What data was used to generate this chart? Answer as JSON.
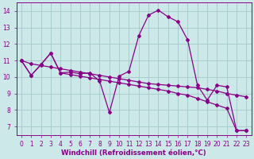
{
  "xlabel": "Windchill (Refroidissement éolien,°C)",
  "bg_color": "#cde8e8",
  "grid_color": "#a8cccc",
  "line_color": "#880088",
  "xlim": [
    -0.5,
    23.5
  ],
  "ylim": [
    6.5,
    14.5
  ],
  "xticks": [
    0,
    1,
    2,
    3,
    4,
    5,
    6,
    7,
    8,
    9,
    10,
    11,
    12,
    13,
    14,
    15,
    16,
    17,
    18,
    19,
    20,
    21,
    22,
    23
  ],
  "yticks": [
    7,
    8,
    9,
    10,
    11,
    12,
    13,
    14
  ],
  "curve1_x": [
    0,
    1,
    2,
    3,
    4,
    5,
    6,
    7,
    8,
    9,
    10,
    11,
    12,
    13,
    14,
    15,
    16,
    17,
    18,
    19,
    20,
    21,
    22,
    23
  ],
  "curve1_y": [
    11.0,
    10.1,
    10.75,
    11.45,
    10.25,
    10.3,
    10.2,
    10.25,
    9.75,
    7.85,
    10.05,
    10.35,
    12.5,
    13.75,
    14.05,
    13.65,
    13.35,
    12.25,
    9.5,
    8.6,
    9.5,
    9.4,
    6.75,
    6.75
  ],
  "curve2_x": [
    0,
    1,
    2,
    3,
    4,
    5,
    6,
    7,
    8,
    9,
    10,
    11,
    12,
    13,
    14,
    15,
    16,
    17,
    18,
    19,
    20,
    21,
    22,
    23
  ],
  "curve2_y": [
    11.0,
    10.8,
    10.7,
    10.6,
    10.5,
    10.4,
    10.3,
    10.2,
    10.1,
    10.0,
    9.9,
    9.8,
    9.7,
    9.6,
    9.55,
    9.5,
    9.45,
    9.4,
    9.35,
    9.25,
    9.15,
    9.0,
    8.9,
    8.8
  ],
  "curve3_x": [
    0,
    1,
    2,
    3,
    4,
    5,
    6,
    7,
    8,
    9,
    10,
    11,
    12,
    13,
    14,
    15,
    16,
    17,
    18,
    19,
    20,
    21,
    22,
    23
  ],
  "curve3_y": [
    11.0,
    10.1,
    10.75,
    11.45,
    10.25,
    10.15,
    10.05,
    9.95,
    9.85,
    9.75,
    9.65,
    9.55,
    9.45,
    9.35,
    9.25,
    9.15,
    9.0,
    8.9,
    8.7,
    8.5,
    8.3,
    8.1,
    6.75,
    6.75
  ],
  "marker": "D",
  "marker_size": 2.0,
  "linewidth": 0.9,
  "font_color": "#880088",
  "tick_font_size": 5.5,
  "label_font_size": 6.2
}
